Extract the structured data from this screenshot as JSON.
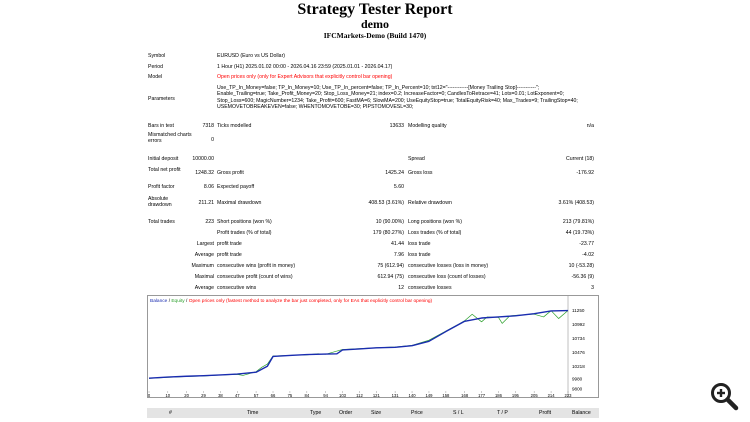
{
  "header": {
    "title": "Strategy Tester Report",
    "subtitle": "demo",
    "server": "IFCMarkets-Demo (Build 1470)"
  },
  "info": {
    "symbol_label": "Symbol",
    "symbol_value": "EURUSD (Euro vs US Dollar)",
    "period_label": "Period",
    "period_value": "1 Hour (H1) 2025.01.02 00:00 - 2026.04.16 23:59 (2025.01.01 - 2026.04.17)",
    "model_label": "Model",
    "model_value": "Open prices only (only for Expert Advisors that explicitly control bar opening)",
    "params_label": "Parameters",
    "params_value": "Use_TP_In_Money=false; TP_In_Money=10; Use_TP_In_percent=false; TP_In_Percent=10; txt12=\"------------[Money Trailing Stop]-----------\"; Enable_Trailing=true; Take_Profit_Money=20; Stop_Loss_Money=21; index=0.2; IncreaseFactor=0; CandlesToRetrace=41; Lots=0.01; LotExponent=0; Stop_Loss=600; MagicNumber=1234; Take_Profit=600; FastMA=6; SlowMA=200; UseEquityStop=true; TotalEquityRisk=40; Max_Trades=9; TrailingStop=40; USEMOVETOBREAKEVEN=false; WHENTOMOVETOBE=30; PIPSTOMOVESL=30;"
  },
  "stats": {
    "bars_label": "Bars in test",
    "bars_value": "7318",
    "ticks_label": "Ticks modelled",
    "ticks_value": "13633",
    "quality_label": "Modelling quality",
    "quality_value": "n/a",
    "mismatch_label": "Mismatched charts errors",
    "mismatch_value": "0",
    "deposit_label": "Initial deposit",
    "deposit_value": "10000.00",
    "spread_label": "Spread",
    "spread_value": "Current (18)",
    "netprofit_label": "Total net profit",
    "netprofit_value": "1248.32",
    "grossprofit_label": "Gross profit",
    "grossprofit_value": "1425.24",
    "grossloss_label": "Gross loss",
    "grossloss_value": "-176.92",
    "pf_label": "Profit factor",
    "pf_value": "8.06",
    "payoff_label": "Expected payoff",
    "payoff_value": "5.60",
    "absdd_label": "Absolute drawdown",
    "absdd_value": "211.21",
    "maxdd_label": "Maximal drawdown",
    "maxdd_value": "408.53 (3.61%)",
    "reldd_label": "Relative drawdown",
    "reldd_value": "3.61% (408.53)",
    "trades_label": "Total trades",
    "trades_value": "223",
    "short_label": "Short positions (won %)",
    "short_value": "10 (90.00%)",
    "long_label": "Long positions (won %)",
    "long_value": "213 (79.81%)",
    "ptrades_label": "Profit trades (% of total)",
    "ptrades_value": "179 (80.27%)",
    "ltrades_label": "Loss trades (% of total)",
    "ltrades_value": "44 (19.73%)",
    "largest_label": "Largest",
    "largest_pt_label": "profit trade",
    "largest_pt_value": "41.44",
    "largest_lt_label": "loss trade",
    "largest_lt_value": "-23.77",
    "average_label": "Average",
    "average_pt_label": "profit trade",
    "average_pt_value": "7.96",
    "average_lt_label": "loss trade",
    "average_lt_value": "-4.02",
    "maximum_label": "Maximum",
    "max_cw_label": "consecutive wins (profit in money)",
    "max_cw_value": "75 (612.94)",
    "max_cl_label": "consecutive losses (loss in money)",
    "max_cl_value": "10 (-53.28)",
    "maximal_label": "Maximal",
    "maxl_cp_label": "consecutive profit (count of wins)",
    "maxl_cp_value": "612.94 (75)",
    "maxl_cl_label": "consecutive loss (count of losses)",
    "maxl_cl_value": "-56.36 (9)",
    "avgc_label": "Average",
    "avgc_cw_label": "consecutive wins",
    "avgc_cw_value": "12",
    "avgc_cl_label": "consecutive losses",
    "avgc_cl_value": "3"
  },
  "chart_data": {
    "type": "line",
    "title": "Balance / Equity / Open prices only (fastest method to analyze the bar just completed, only for EAs that explicitly control bar opening)",
    "legend_balance": "Balance",
    "legend_equity": "Equity",
    "legend_note": "Open prices only (fastest method to analyze the bar just completed, only for EAs that explicitly control bar opening)",
    "x_ticks": [
      "0",
      "10",
      "20",
      "29",
      "38",
      "47",
      "57",
      "66",
      "75",
      "84",
      "94",
      "103",
      "112",
      "121",
      "131",
      "140",
      "149",
      "158",
      "168",
      "177",
      "186",
      "195",
      "205",
      "214",
      "223"
    ],
    "y_ticks": [
      "11250",
      "10992",
      "10734",
      "10476",
      "10218",
      "9980",
      "9800"
    ],
    "ylim": [
      9800,
      11350
    ],
    "series": [
      {
        "name": "Balance",
        "color": "#1a2cb0",
        "points": [
          [
            0,
            10000
          ],
          [
            10,
            10020
          ],
          [
            20,
            10035
          ],
          [
            29,
            10045
          ],
          [
            38,
            10060
          ],
          [
            47,
            10075
          ],
          [
            57,
            10110
          ],
          [
            63,
            10220
          ],
          [
            66,
            10400
          ],
          [
            75,
            10420
          ],
          [
            84,
            10435
          ],
          [
            94,
            10445
          ],
          [
            100,
            10450
          ],
          [
            103,
            10520
          ],
          [
            112,
            10540
          ],
          [
            121,
            10560
          ],
          [
            131,
            10570
          ],
          [
            140,
            10600
          ],
          [
            149,
            10680
          ],
          [
            158,
            10860
          ],
          [
            168,
            11050
          ],
          [
            177,
            11110
          ],
          [
            186,
            11130
          ],
          [
            195,
            11150
          ],
          [
            205,
            11190
          ],
          [
            214,
            11240
          ],
          [
            223,
            11248
          ]
        ]
      },
      {
        "name": "Equity",
        "color": "#2ca02c",
        "points": [
          [
            0,
            9995
          ],
          [
            10,
            10015
          ],
          [
            20,
            10030
          ],
          [
            29,
            10040
          ],
          [
            38,
            10058
          ],
          [
            47,
            10070
          ],
          [
            50,
            10050
          ],
          [
            57,
            10120
          ],
          [
            60,
            10200
          ],
          [
            63,
            10260
          ],
          [
            66,
            10410
          ],
          [
            75,
            10422
          ],
          [
            84,
            10430
          ],
          [
            90,
            10450
          ],
          [
            94,
            10440
          ],
          [
            103,
            10530
          ],
          [
            112,
            10545
          ],
          [
            121,
            10562
          ],
          [
            131,
            10575
          ],
          [
            140,
            10605
          ],
          [
            149,
            10700
          ],
          [
            158,
            10870
          ],
          [
            165,
            11000
          ],
          [
            168,
            11060
          ],
          [
            172,
            11180
          ],
          [
            177,
            11040
          ],
          [
            180,
            11130
          ],
          [
            186,
            11120
          ],
          [
            188,
            11010
          ],
          [
            192,
            11150
          ],
          [
            195,
            11160
          ],
          [
            205,
            11180
          ],
          [
            210,
            11130
          ],
          [
            214,
            11245
          ],
          [
            218,
            11100
          ],
          [
            223,
            11248
          ]
        ]
      }
    ]
  },
  "table": {
    "headers": [
      "#",
      "Time",
      "Type",
      "Order",
      "Size",
      "Price",
      "S / L",
      "T / P",
      "Profit",
      "Balance"
    ]
  },
  "zoom_icon": "zoom-in-icon"
}
